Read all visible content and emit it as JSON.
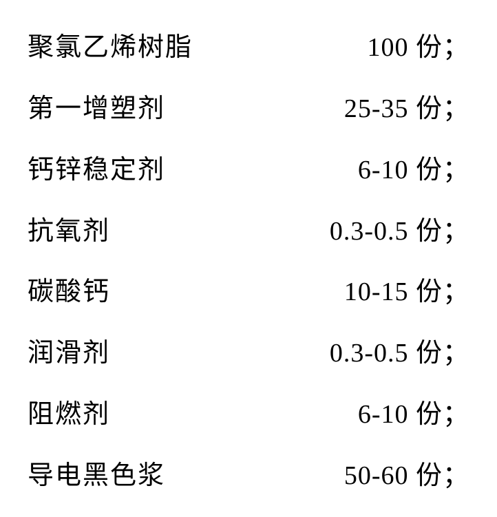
{
  "type": "table",
  "background_color": "#ffffff",
  "text_color": "#000000",
  "font_family": "SimSun",
  "font_size": 38,
  "columns": [
    "ingredient",
    "amount"
  ],
  "column_alignment": [
    "left",
    "right"
  ],
  "rows": [
    {
      "ingredient": "聚氯乙烯树脂",
      "amount": "100 份；"
    },
    {
      "ingredient": "第一增塑剂",
      "amount": "25-35 份；"
    },
    {
      "ingredient": "钙锌稳定剂",
      "amount": "6-10 份；"
    },
    {
      "ingredient": "抗氧剂",
      "amount": "0.3-0.5 份；"
    },
    {
      "ingredient": "碳酸钙",
      "amount": "10-15 份；"
    },
    {
      "ingredient": "润滑剂",
      "amount": "0.3-0.5 份；"
    },
    {
      "ingredient": "阻燃剂",
      "amount": "6-10 份；"
    },
    {
      "ingredient": "导电黑色浆",
      "amount": "50-60 份；"
    }
  ]
}
